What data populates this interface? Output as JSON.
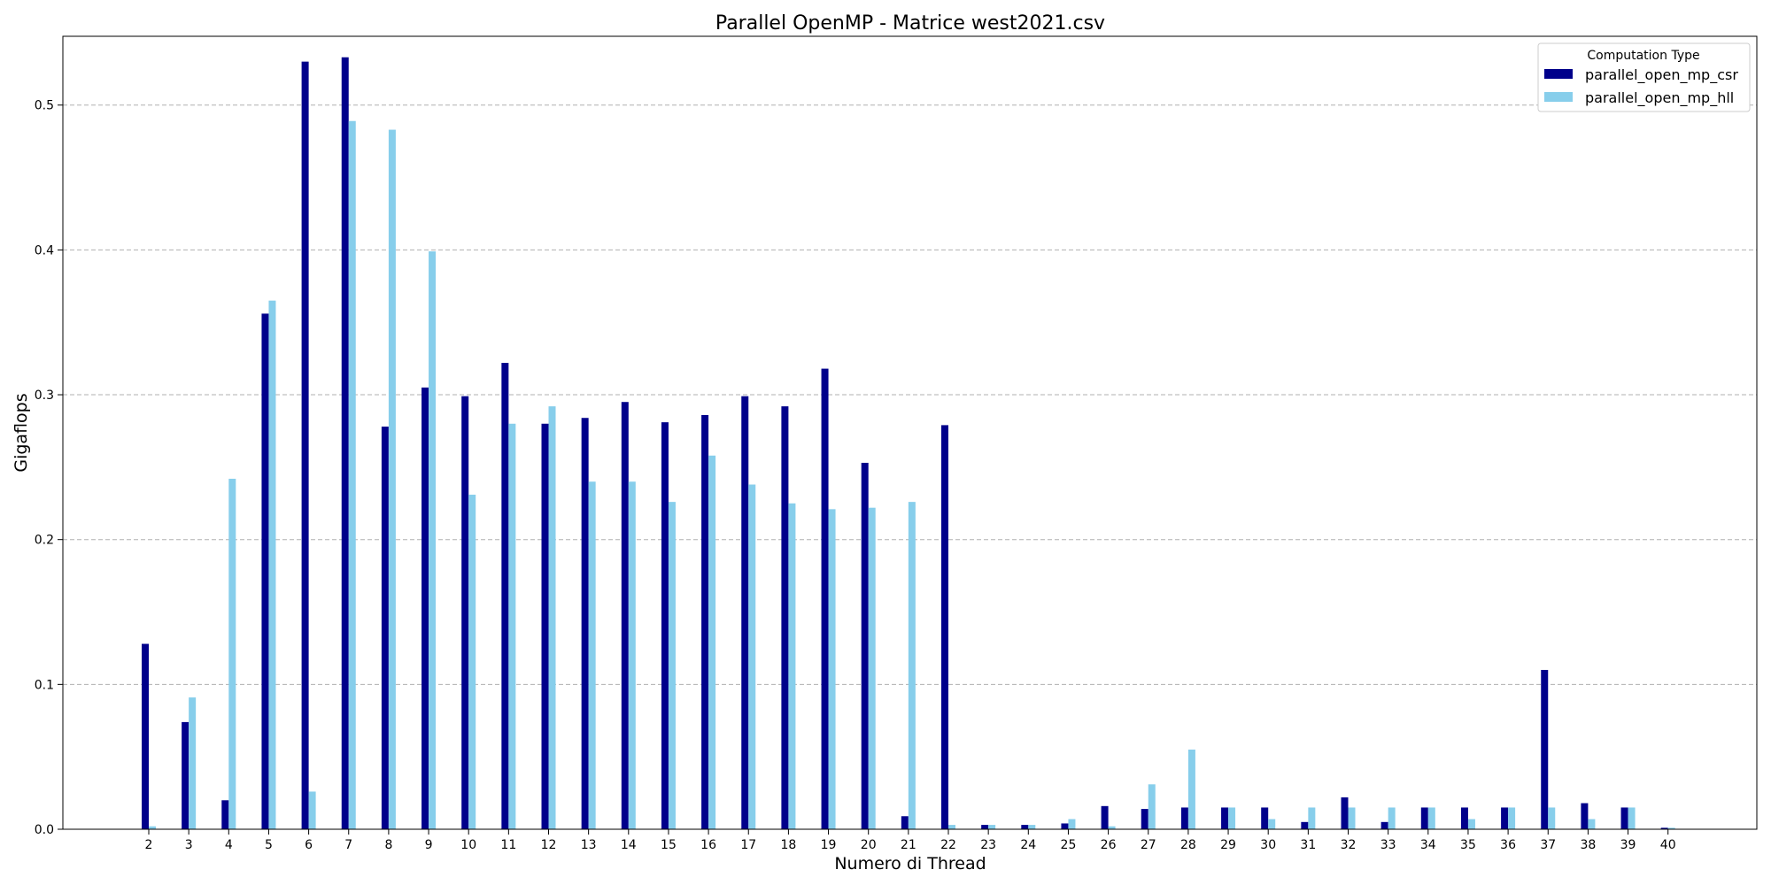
{
  "chart_data": {
    "type": "bar",
    "title": "Parallel OpenMP - Matrice west2021.csv",
    "xlabel": "Numero di Thread",
    "ylabel": "Gigaflops",
    "categories": [
      "2",
      "3",
      "4",
      "5",
      "6",
      "7",
      "8",
      "9",
      "10",
      "11",
      "12",
      "13",
      "14",
      "15",
      "16",
      "17",
      "18",
      "19",
      "20",
      "21",
      "22",
      "23",
      "24",
      "25",
      "26",
      "27",
      "28",
      "29",
      "30",
      "31",
      "32",
      "33",
      "34",
      "35",
      "36",
      "37",
      "38",
      "39",
      "40"
    ],
    "series": [
      {
        "name": "parallel_open_mp_csr",
        "color": "#00008B",
        "values": [
          0.128,
          0.074,
          0.02,
          0.356,
          0.53,
          0.533,
          0.278,
          0.305,
          0.299,
          0.322,
          0.28,
          0.284,
          0.295,
          0.281,
          0.286,
          0.299,
          0.292,
          0.318,
          0.253,
          0.009,
          0.279,
          0.003,
          0.003,
          0.004,
          0.016,
          0.014,
          0.015,
          0.015,
          0.015,
          0.005,
          0.022,
          0.005,
          0.015,
          0.015,
          0.015,
          0.11,
          0.018,
          0.015,
          0.001
        ]
      },
      {
        "name": "parallel_open_mp_hll",
        "color": "#87CEEB",
        "values": [
          0.002,
          0.091,
          0.242,
          0.365,
          0.026,
          0.489,
          0.483,
          0.399,
          0.231,
          0.28,
          0.292,
          0.24,
          0.24,
          0.226,
          0.258,
          0.238,
          0.225,
          0.221,
          0.222,
          0.226,
          0.003,
          0.003,
          0.003,
          0.007,
          0.002,
          0.031,
          0.055,
          0.015,
          0.007,
          0.015,
          0.015,
          0.015,
          0.015,
          0.007,
          0.015,
          0.015,
          0.007,
          0.015,
          0.001
        ]
      }
    ],
    "yticks": [
      "0.0",
      "0.1",
      "0.2",
      "0.3",
      "0.4",
      "0.5"
    ],
    "ylim": [
      0,
      0.5475
    ],
    "grid": "horizontal-dashed",
    "legend": {
      "title": "Computation Type",
      "placement": "top-right"
    }
  }
}
